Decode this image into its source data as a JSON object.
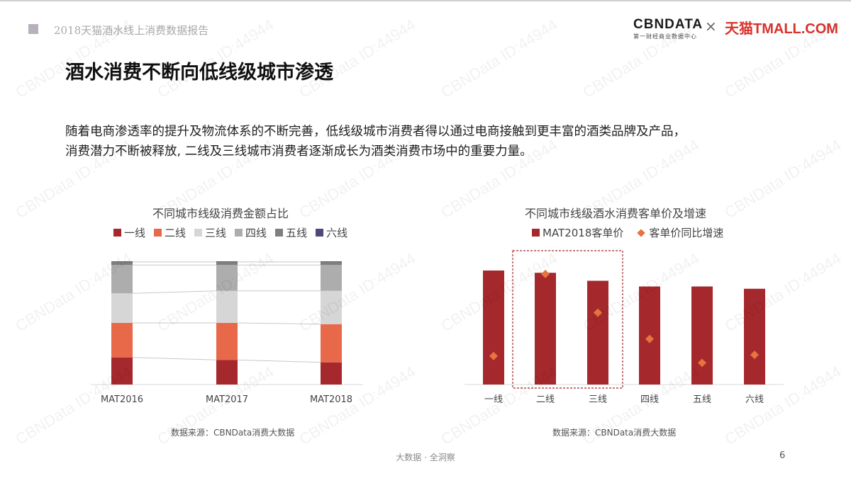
{
  "header": {
    "report_title": "2018天猫酒水线上消费数据报告",
    "logo_cbn": "CBNDATA",
    "logo_cbn_sub": "第一财经商业数据中心",
    "logo_x": "×",
    "logo_tmall": "天猫TMALL.COM"
  },
  "page_heading": "酒水消费不断向低线级城市渗透",
  "intro_line1": "随着电商渗透率的提升及物流体系的不断完善，低线级城市消费者得以通过电商接触到更丰富的酒类品牌及产品，",
  "intro_line2": "消费潜力不断被释放, 二线及三线城市消费者逐渐成长为酒类消费市场中的重要力量。",
  "watermark_text": "CBNData ID:44944",
  "footer": {
    "tagline": "大数据 · 全洞察",
    "page_number": "6"
  },
  "colors": {
    "tier1": "#a5282c",
    "tier2": "#e8694a",
    "tier3": "#d6d6d6",
    "tier4": "#adadad",
    "tier5": "#7f7f7f",
    "tier6": "#4d4a78",
    "bar": "#a5282c",
    "diamond": "#e8733e",
    "highlight_box": "#a5282c"
  },
  "chart_data": [
    {
      "type": "bar",
      "stacked": true,
      "title": "不同城市线级消费金额占比",
      "categories": [
        "MAT2016",
        "MAT2017",
        "MAT2018"
      ],
      "series": [
        {
          "name": "一线",
          "color": "#a5282c",
          "values": [
            22,
            20,
            18
          ]
        },
        {
          "name": "二线",
          "color": "#e8694a",
          "values": [
            28,
            30,
            31
          ]
        },
        {
          "name": "三线",
          "color": "#d6d6d6",
          "values": [
            24,
            26,
            27
          ]
        },
        {
          "name": "四线",
          "color": "#adadad",
          "values": [
            23,
            21,
            21
          ]
        },
        {
          "name": "五线",
          "color": "#7f7f7f",
          "values": [
            2.5,
            2.5,
            2.5
          ]
        },
        {
          "name": "六线",
          "color": "#4d4a78",
          "values": [
            0.5,
            0.5,
            0.5
          ]
        }
      ],
      "ylim": [
        0,
        100
      ],
      "connector_lines": true,
      "source": "数据来源：CBNData消费大数据"
    },
    {
      "type": "bar",
      "title": "不同城市线级酒水消费客单价及增速",
      "categories": [
        "一线",
        "二线",
        "三线",
        "四线",
        "五线",
        "六线"
      ],
      "series": [
        {
          "name": "MAT2018客单价",
          "type": "bar",
          "color": "#a5282c",
          "values": [
            100,
            98,
            91,
            86,
            86,
            84
          ]
        },
        {
          "name": "客单价同比增速",
          "type": "scatter",
          "marker": "diamond",
          "color": "#e8733e",
          "values": [
            25,
            97,
            63,
            40,
            19,
            26
          ]
        }
      ],
      "ylim": [
        0,
        100
      ],
      "highlight_categories": [
        "二线",
        "三线"
      ],
      "source": "数据来源：CBNData消费大数据"
    }
  ]
}
